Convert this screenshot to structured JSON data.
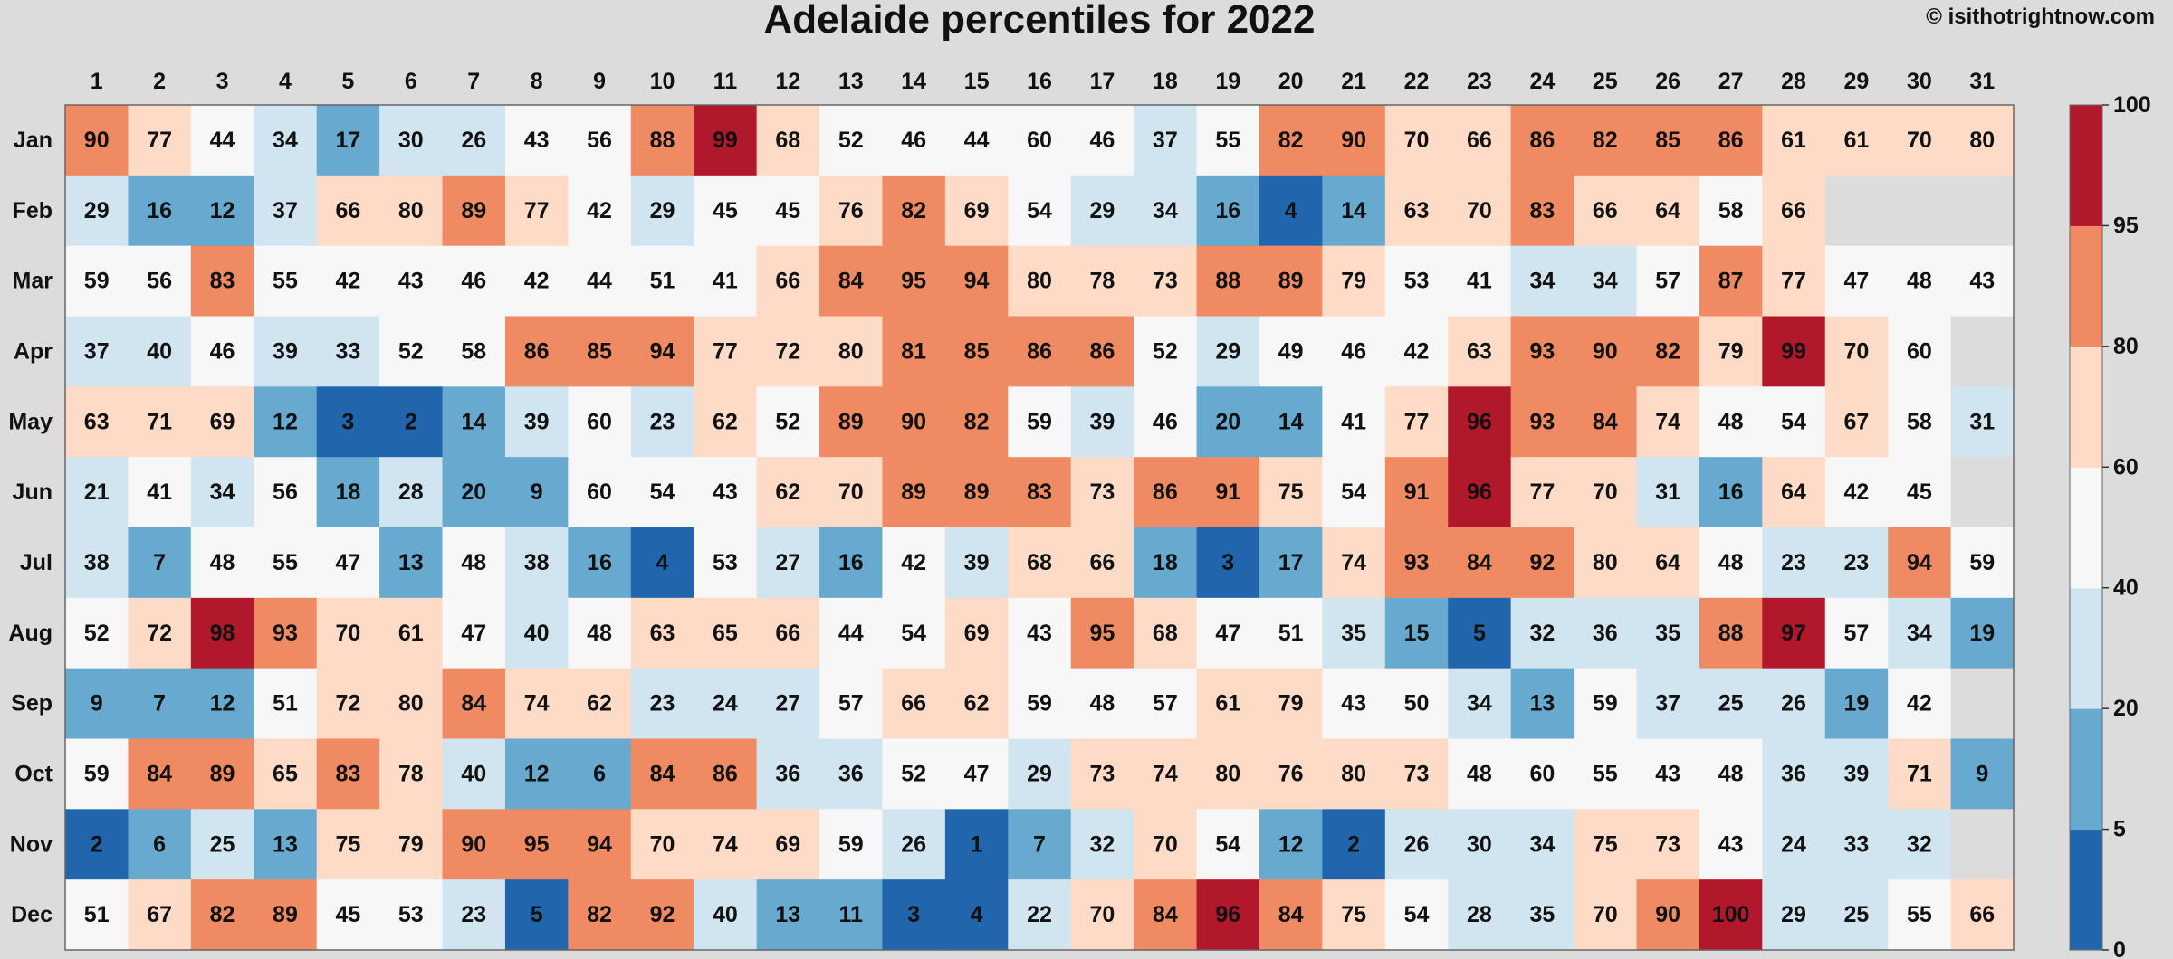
{
  "chart_data": {
    "type": "heatmap",
    "title": "Adelaide percentiles for 2022",
    "credit": "© isithotrightnow.com",
    "columns": [
      "1",
      "2",
      "3",
      "4",
      "5",
      "6",
      "7",
      "8",
      "9",
      "10",
      "11",
      "12",
      "13",
      "14",
      "15",
      "16",
      "17",
      "18",
      "19",
      "20",
      "21",
      "22",
      "23",
      "24",
      "25",
      "26",
      "27",
      "28",
      "29",
      "30",
      "31"
    ],
    "rows": [
      "Jan",
      "Feb",
      "Mar",
      "Apr",
      "May",
      "Jun",
      "Jul",
      "Aug",
      "Sep",
      "Oct",
      "Nov",
      "Dec"
    ],
    "values": [
      [
        90,
        77,
        44,
        34,
        17,
        30,
        26,
        43,
        56,
        88,
        99,
        68,
        52,
        46,
        44,
        60,
        46,
        37,
        55,
        82,
        90,
        70,
        66,
        86,
        82,
        85,
        86,
        61,
        61,
        70,
        80
      ],
      [
        29,
        16,
        12,
        37,
        66,
        80,
        89,
        77,
        42,
        29,
        45,
        45,
        76,
        82,
        69,
        54,
        29,
        34,
        16,
        4,
        14,
        63,
        70,
        83,
        66,
        64,
        58,
        66,
        null,
        null,
        null
      ],
      [
        59,
        56,
        83,
        55,
        42,
        43,
        46,
        42,
        44,
        51,
        41,
        66,
        84,
        95,
        94,
        80,
        78,
        73,
        88,
        89,
        79,
        53,
        41,
        34,
        34,
        57,
        87,
        77,
        47,
        48,
        43
      ],
      [
        37,
        40,
        46,
        39,
        33,
        52,
        58,
        86,
        85,
        94,
        77,
        72,
        80,
        81,
        85,
        86,
        86,
        52,
        29,
        49,
        46,
        42,
        63,
        93,
        90,
        82,
        79,
        99,
        70,
        60,
        null
      ],
      [
        63,
        71,
        69,
        12,
        3,
        2,
        14,
        39,
        60,
        23,
        62,
        52,
        89,
        90,
        82,
        59,
        39,
        46,
        20,
        14,
        41,
        77,
        96,
        93,
        84,
        74,
        48,
        54,
        67,
        58,
        31
      ],
      [
        21,
        41,
        34,
        56,
        18,
        28,
        20,
        9,
        60,
        54,
        43,
        62,
        70,
        89,
        89,
        83,
        73,
        86,
        91,
        75,
        54,
        91,
        96,
        77,
        70,
        31,
        16,
        64,
        42,
        45,
        null
      ],
      [
        38,
        7,
        48,
        55,
        47,
        13,
        48,
        38,
        16,
        4,
        53,
        27,
        16,
        42,
        39,
        68,
        66,
        18,
        3,
        17,
        74,
        93,
        84,
        92,
        80,
        64,
        48,
        23,
        23,
        94,
        59
      ],
      [
        52,
        72,
        98,
        93,
        70,
        61,
        47,
        40,
        48,
        63,
        65,
        66,
        44,
        54,
        69,
        43,
        95,
        68,
        47,
        51,
        35,
        15,
        5,
        32,
        36,
        35,
        88,
        97,
        57,
        34,
        19
      ],
      [
        9,
        7,
        12,
        51,
        72,
        80,
        84,
        74,
        62,
        23,
        24,
        27,
        57,
        66,
        62,
        59,
        48,
        57,
        61,
        79,
        43,
        50,
        34,
        13,
        59,
        37,
        25,
        26,
        19,
        42,
        null
      ],
      [
        59,
        84,
        89,
        65,
        83,
        78,
        40,
        12,
        6,
        84,
        86,
        36,
        36,
        52,
        47,
        29,
        73,
        74,
        80,
        76,
        80,
        73,
        48,
        60,
        55,
        43,
        48,
        36,
        39,
        71,
        9
      ],
      [
        2,
        6,
        25,
        13,
        75,
        79,
        90,
        95,
        94,
        70,
        74,
        69,
        59,
        26,
        1,
        7,
        32,
        70,
        54,
        12,
        2,
        26,
        30,
        34,
        75,
        73,
        43,
        24,
        33,
        32,
        null
      ],
      [
        51,
        67,
        82,
        89,
        45,
        53,
        23,
        5,
        82,
        92,
        40,
        13,
        11,
        3,
        4,
        22,
        70,
        84,
        96,
        84,
        75,
        54,
        28,
        35,
        70,
        90,
        100,
        29,
        25,
        55,
        66
      ]
    ],
    "colorbar": {
      "ticks": [
        "0",
        "5",
        "20",
        "40",
        "60",
        "80",
        "95",
        "100"
      ],
      "bins": [
        {
          "from": 0,
          "to": 5,
          "color": "#2166ac"
        },
        {
          "from": 5,
          "to": 20,
          "color": "#67a9cf"
        },
        {
          "from": 20,
          "to": 40,
          "color": "#d1e5f0"
        },
        {
          "from": 40,
          "to": 60,
          "color": "#f7f7f7"
        },
        {
          "from": 60,
          "to": 80,
          "color": "#fddbc7"
        },
        {
          "from": 80,
          "to": 95,
          "color": "#ef8a62"
        },
        {
          "from": 95,
          "to": 100,
          "color": "#b2182b"
        }
      ]
    },
    "missing_color": "#dcdcdc"
  }
}
